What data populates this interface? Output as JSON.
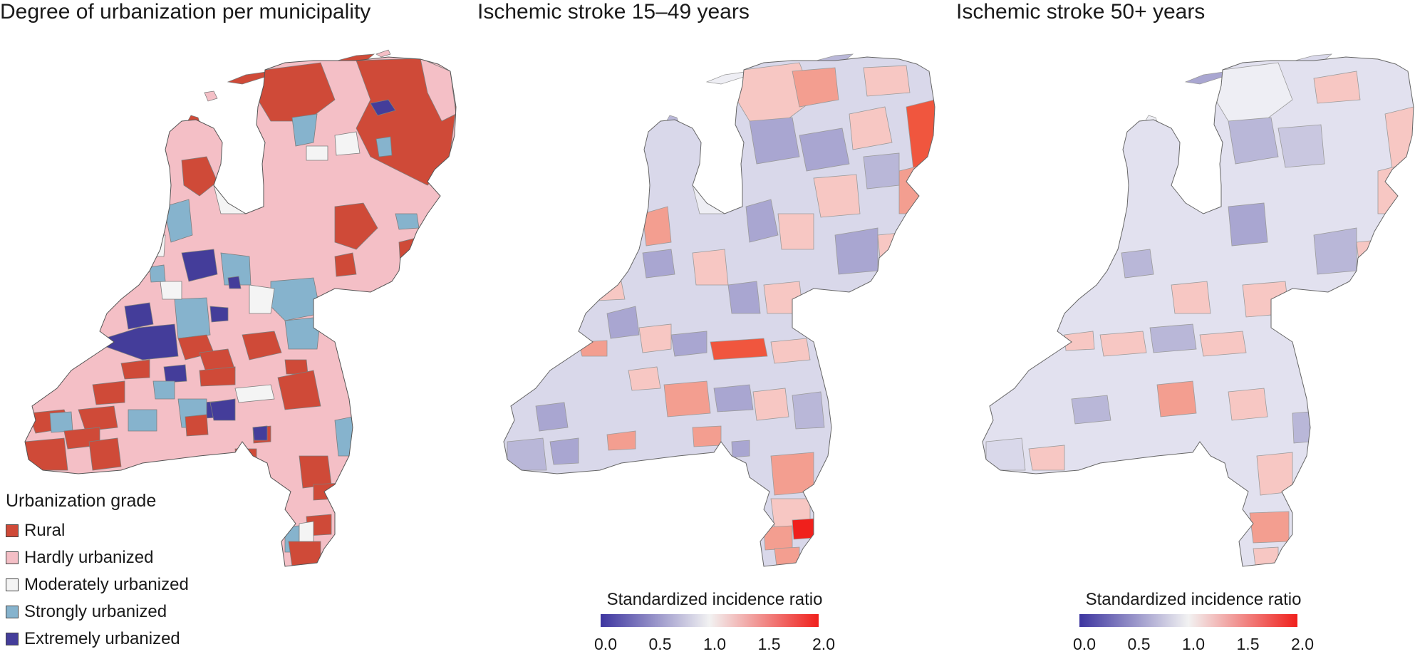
{
  "panels": [
    {
      "id": "urbanization",
      "title": "Degree of urbanization per municipality"
    },
    {
      "id": "stroke_young",
      "title": "Ischemic stroke 15–49 years"
    },
    {
      "id": "stroke_old",
      "title": "Ischemic stroke 50+ years"
    }
  ],
  "urbanization_legend": {
    "title": "Urbanization grade",
    "items": [
      {
        "label": "Rural",
        "color": "#cf4a38"
      },
      {
        "label": "Hardly urbanized",
        "color": "#f4bfc6"
      },
      {
        "label": "Moderately urbanized",
        "color": "#f4f4f4"
      },
      {
        "label": "Strongly urbanized",
        "color": "#86b3cd"
      },
      {
        "label": "Extremely urbanized",
        "color": "#443d9a"
      }
    ]
  },
  "incidence_scale": {
    "title": "Standardized incidence ratio",
    "ticks": [
      "0.0",
      "0.5",
      "1.0",
      "1.5",
      "2.0"
    ],
    "colors": {
      "low": "#3d35a0",
      "mid": "#f2f2f2",
      "high": "#f0201c"
    }
  }
}
